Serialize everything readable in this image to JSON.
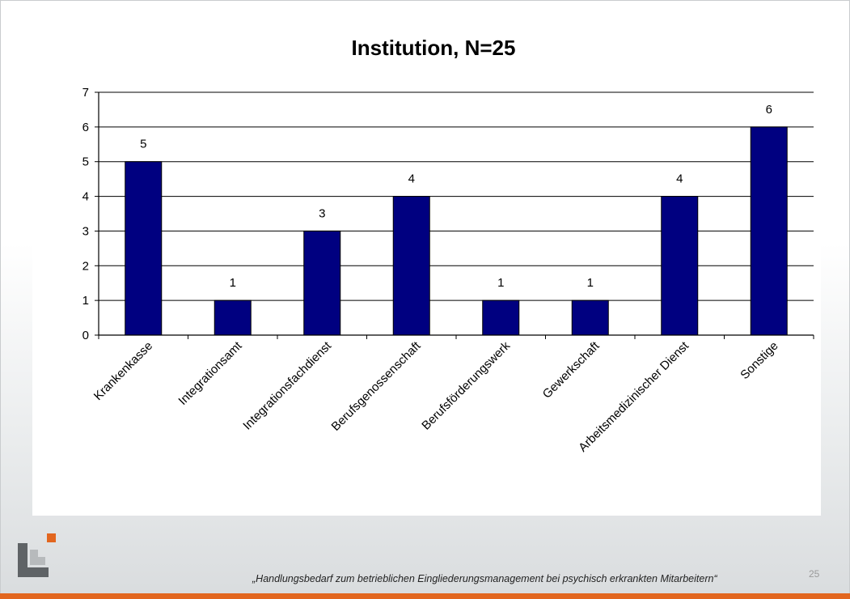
{
  "chart_data": {
    "type": "bar",
    "title": "Institution, N=25",
    "categories": [
      "Krankenkasse",
      "Integrationsamt",
      "Integrationsfachdienst",
      "Berufsgenossenschaft",
      "Berufsförderungswerk",
      "Gewerkschaft",
      "Arbeitsmedizinischer Dienst",
      "Sonstige"
    ],
    "values": [
      5,
      1,
      3,
      4,
      1,
      1,
      4,
      6
    ],
    "ylim": [
      0,
      7
    ],
    "yticks": [
      0,
      1,
      2,
      3,
      4,
      5,
      6,
      7
    ],
    "grid": true,
    "data_labels": true,
    "xlabel": "",
    "ylabel": "",
    "bar_color": "#000080"
  },
  "footer": {
    "text": "„Handlungsbedarf zum betrieblichen Eingliederungsmanagement bei psychisch erkrankten Mitarbeitern“",
    "page_number": "25"
  },
  "colors": {
    "accent_bar": "#e2661f",
    "logo_orange": "#e2661f",
    "logo_gray": "#5f6366",
    "logo_light_gray": "#b7babc"
  }
}
